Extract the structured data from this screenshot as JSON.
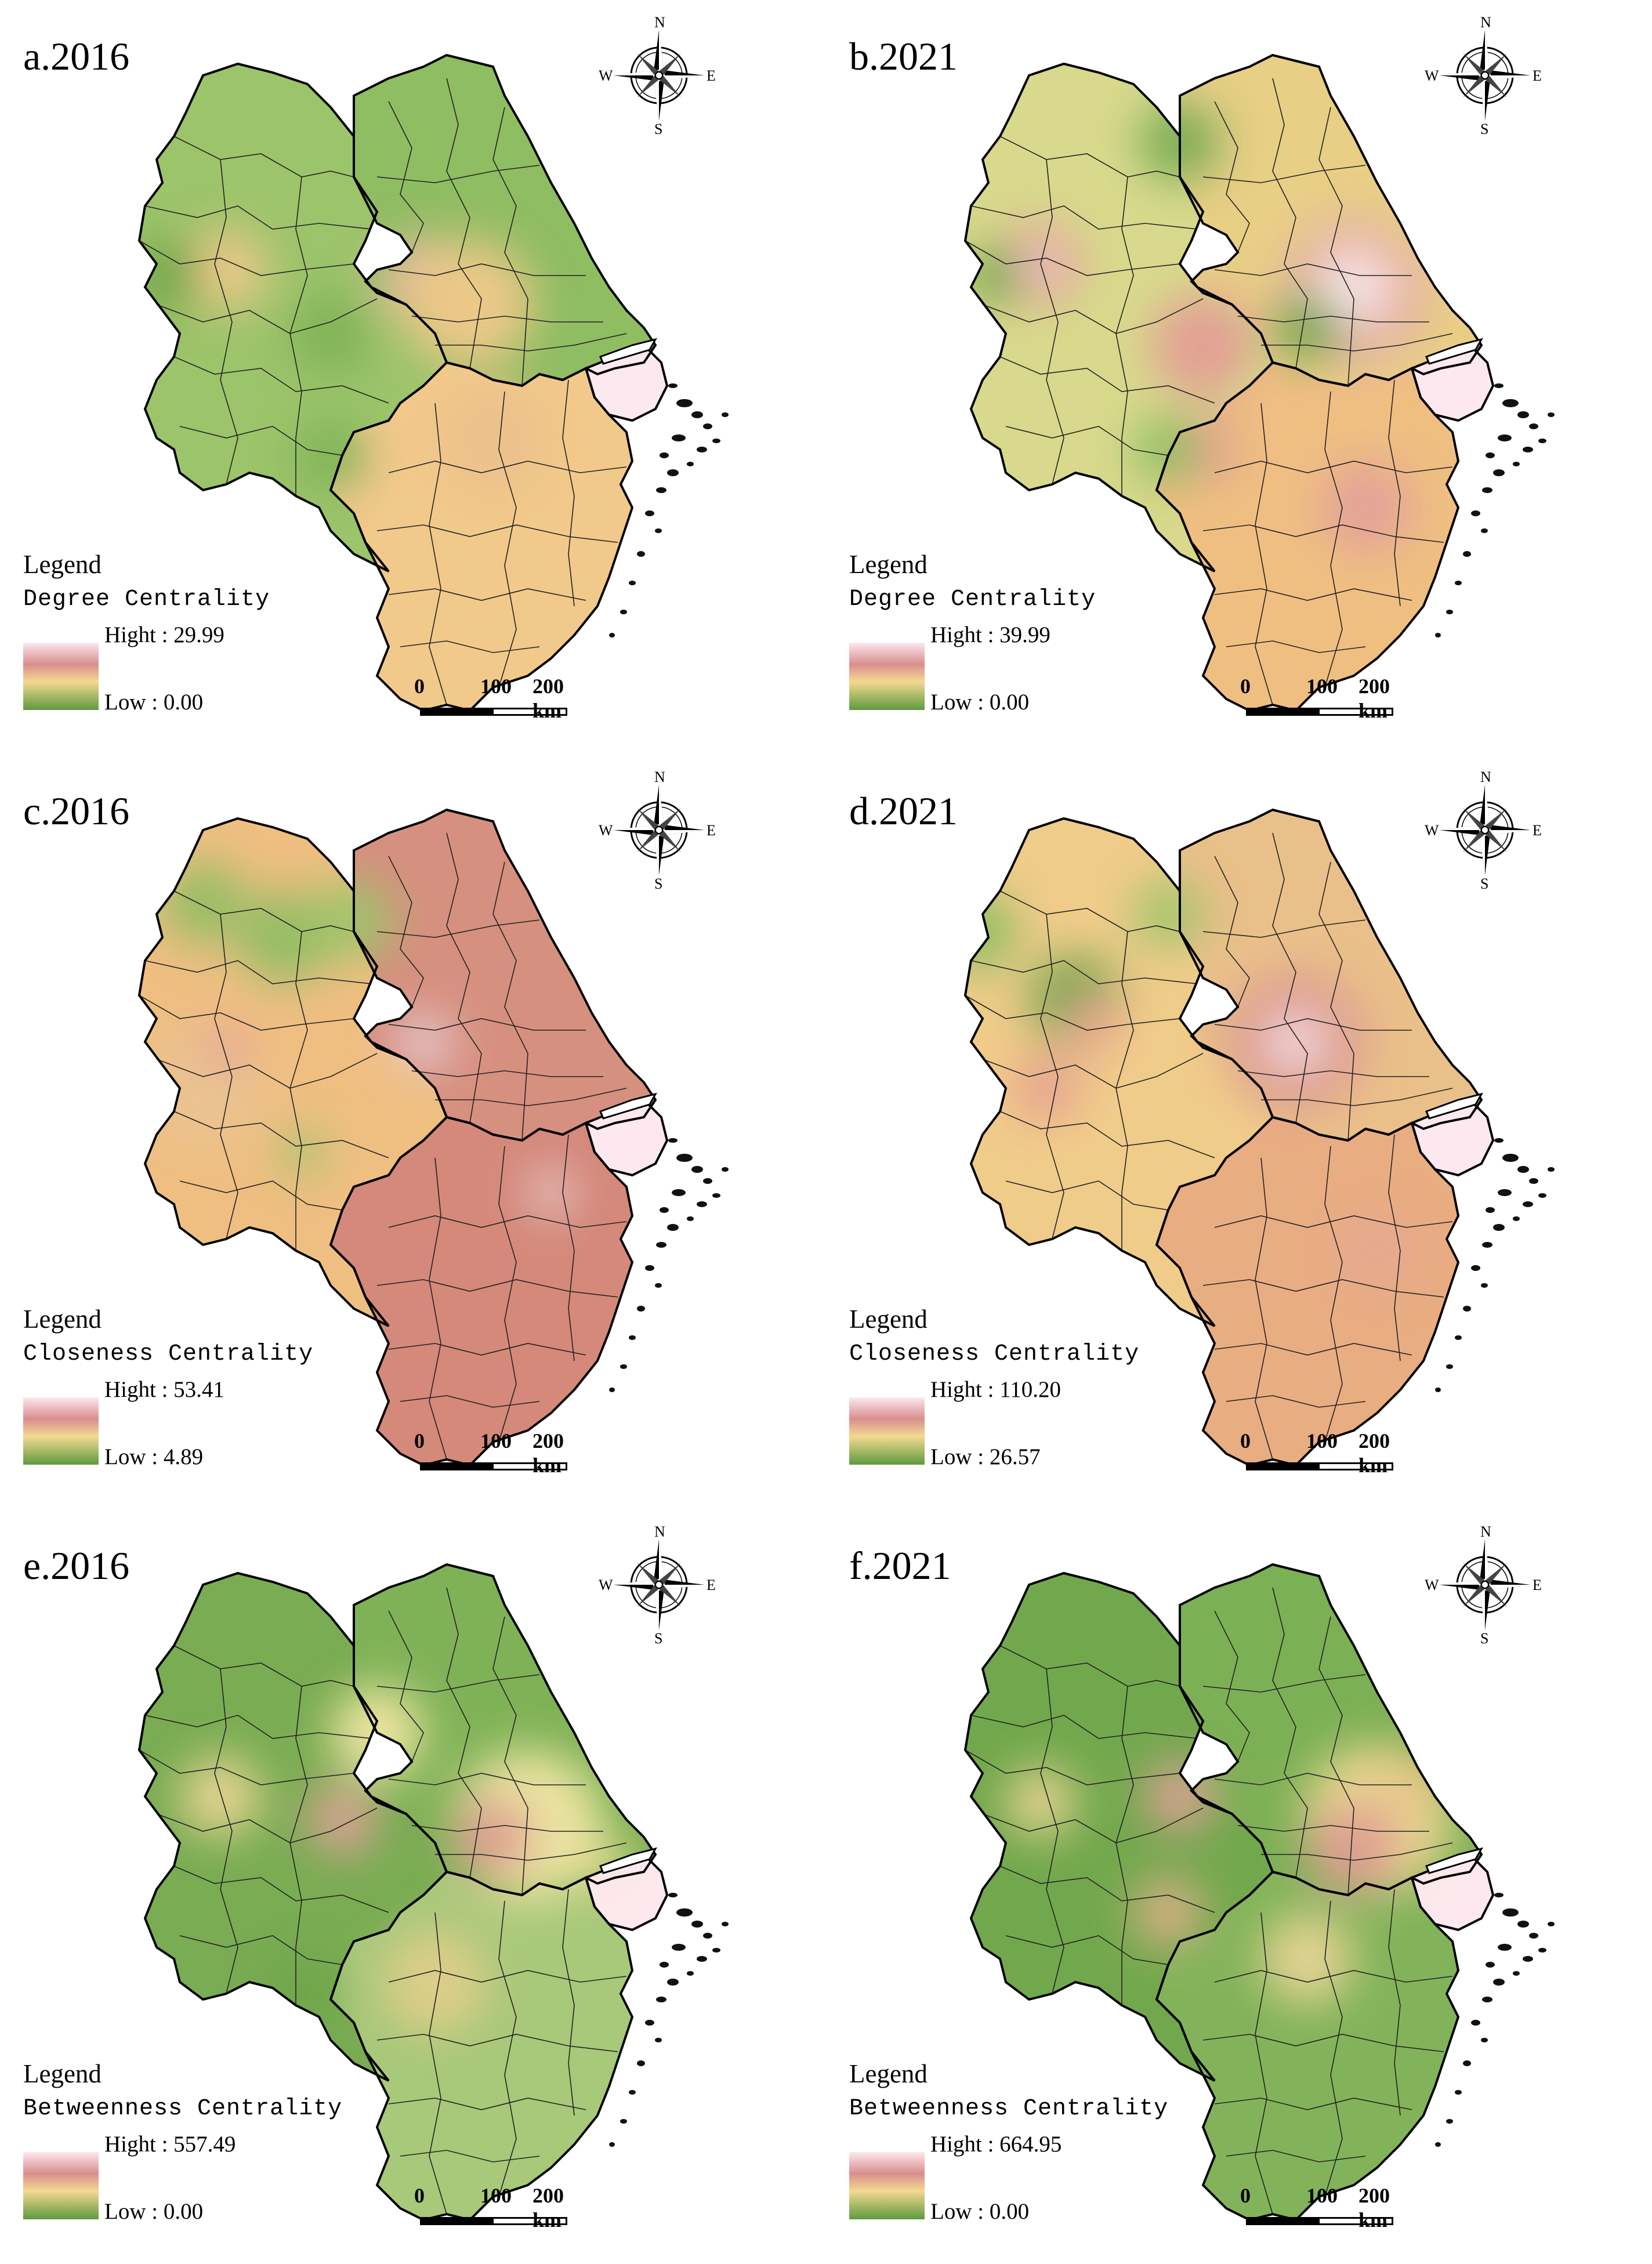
{
  "compass": {
    "n": "N",
    "s": "S",
    "e": "E",
    "w": "W"
  },
  "legend_word": "Legend",
  "scale": {
    "t0": "0",
    "t1": "100",
    "t2": "200 km"
  },
  "colors": {
    "high": "#fde7ef",
    "upper": "#d98e8e",
    "mid": "#f3d991",
    "low": "#5e9a3f"
  },
  "panels": [
    {
      "title": "a.2016",
      "metric": "Degree Centrality",
      "high": "Hight : 29.99",
      "low": "Low : 0.00",
      "theme": "deg16"
    },
    {
      "title": "b.2021",
      "metric": "Degree Centrality",
      "high": "Hight : 39.99",
      "low": "Low : 0.00",
      "theme": "deg21"
    },
    {
      "title": "c.2016",
      "metric": "Closeness Centrality",
      "high": "Hight : 53.41",
      "low": "Low : 4.89",
      "theme": "clo16"
    },
    {
      "title": "d.2021",
      "metric": "Closeness Centrality",
      "high": "Hight : 110.20",
      "low": "Low : 26.57",
      "theme": "clo21"
    },
    {
      "title": "e.2016",
      "metric": "Betweenness Centrality",
      "high": "Hight : 557.49",
      "low": "Low : 0.00",
      "theme": "bet16"
    },
    {
      "title": "f.2021",
      "metric": "Betweenness Centrality",
      "high": "Hight : 664.95",
      "low": "Low : 0.00",
      "theme": "bet21"
    }
  ]
}
